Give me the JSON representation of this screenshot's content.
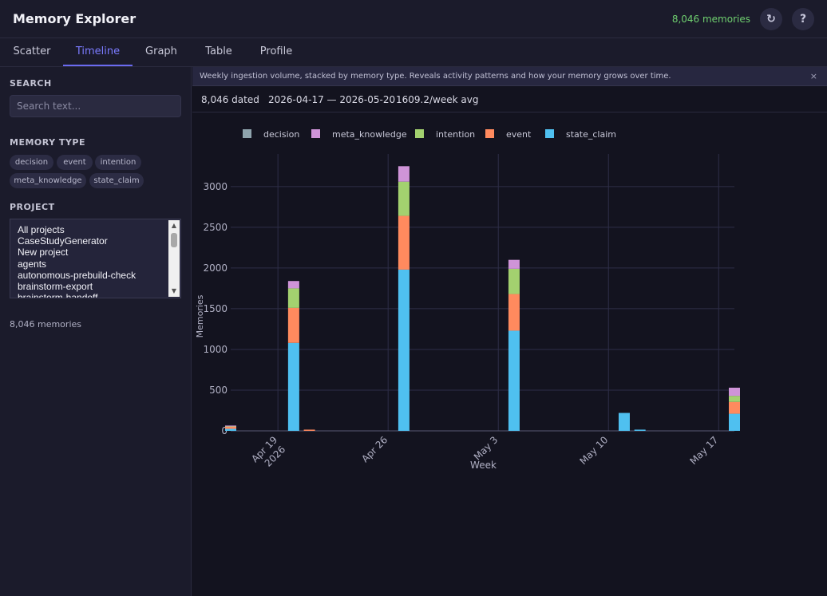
{
  "header": {
    "title": "Memory Explorer",
    "count": "8,046 memories",
    "refresh_icon": "↻",
    "help_icon": "?"
  },
  "tabs": [
    {
      "label": "Scatter",
      "active": false
    },
    {
      "label": "Timeline",
      "active": true
    },
    {
      "label": "Graph",
      "active": false
    },
    {
      "label": "Table",
      "active": false
    },
    {
      "label": "Profile",
      "active": false
    }
  ],
  "sidebar": {
    "search_heading": "SEARCH",
    "search_placeholder": "Search text...",
    "type_heading": "MEMORY TYPE",
    "types": [
      "decision",
      "event",
      "intention",
      "meta_knowledge",
      "state_claim"
    ],
    "project_heading": "PROJECT",
    "projects": [
      "All projects",
      "CaseStudyGenerator",
      "New project",
      "agents",
      "autonomous-prebuild-check",
      "brainstorm-export",
      "brainstorm-handoff"
    ],
    "footer": "8,046 memories"
  },
  "banner": {
    "text": "Weekly ingestion volume, stacked by memory type. Reveals activity patterns and how your memory grows over time.",
    "close": "×"
  },
  "stats": {
    "dated": "8,046 dated",
    "range": "2026-04-17 — 2026-05-20",
    "avg": "1609.2/week avg"
  },
  "colors": {
    "decision": "#8fa4ad",
    "meta_knowledge": "#cf94d8",
    "intention": "#a3d16f",
    "event": "#ff8a5e",
    "state_claim": "#4fc0f0",
    "grid": "#2e2e48",
    "tick": "#b0b0c4"
  },
  "chart_data": {
    "type": "bar",
    "stacked": true,
    "xlabel": "Week",
    "ylabel": "Memories",
    "ylim": [
      0,
      3400
    ],
    "yticks": [
      0,
      500,
      1000,
      1500,
      2000,
      2500,
      3000
    ],
    "xlim": [
      "2026-04-16",
      "2026-05-18"
    ],
    "xticks": [
      {
        "date": "2026-04-19",
        "label": "Apr 19",
        "label2": "2026"
      },
      {
        "date": "2026-04-26",
        "label": "Apr 26",
        "label2": ""
      },
      {
        "date": "2026-05-03",
        "label": "May 3",
        "label2": ""
      },
      {
        "date": "2026-05-10",
        "label": "May 10",
        "label2": ""
      },
      {
        "date": "2026-05-17",
        "label": "May 17",
        "label2": ""
      }
    ],
    "legend_position": "top",
    "legend": [
      "decision",
      "meta_knowledge",
      "intention",
      "event",
      "state_claim"
    ],
    "stack_order": [
      "state_claim",
      "event",
      "intention",
      "meta_knowledge",
      "decision"
    ],
    "bars": [
      {
        "date": "2026-04-16",
        "state_claim": 25,
        "event": 30,
        "intention": 5,
        "meta_knowledge": 5,
        "decision": 0
      },
      {
        "date": "2026-04-20",
        "state_claim": 1080,
        "event": 430,
        "intention": 240,
        "meta_knowledge": 90,
        "decision": 0
      },
      {
        "date": "2026-04-21",
        "state_claim": 0,
        "event": 15,
        "intention": 0,
        "meta_knowledge": 0,
        "decision": 0
      },
      {
        "date": "2026-04-27",
        "state_claim": 1980,
        "event": 660,
        "intention": 420,
        "meta_knowledge": 190,
        "decision": 0
      },
      {
        "date": "2026-05-04",
        "state_claim": 1230,
        "event": 450,
        "intention": 310,
        "meta_knowledge": 110,
        "decision": 0
      },
      {
        "date": "2026-05-11",
        "state_claim": 220,
        "event": 0,
        "intention": 0,
        "meta_knowledge": 0,
        "decision": 0
      },
      {
        "date": "2026-05-12",
        "state_claim": 15,
        "event": 0,
        "intention": 0,
        "meta_knowledge": 0,
        "decision": 0
      },
      {
        "date": "2026-05-18",
        "state_claim": 210,
        "event": 145,
        "intention": 75,
        "meta_knowledge": 100,
        "decision": 0
      }
    ]
  }
}
